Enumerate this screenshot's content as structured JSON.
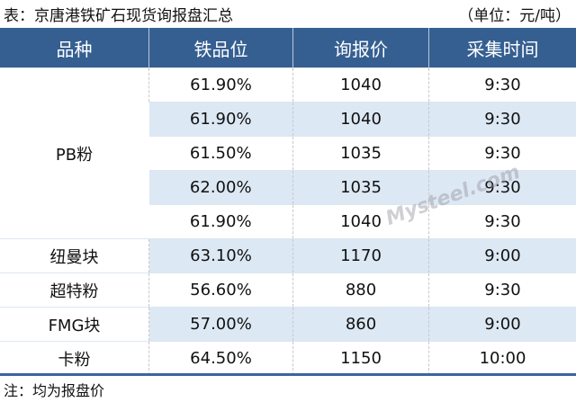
{
  "title": "表：京唐港铁矿石现货询报盘汇总",
  "unit": "（单位：元/吨）",
  "headers": [
    "品种",
    "铁品位",
    "询报价",
    "采集时间"
  ],
  "rows": [
    {
      "variety": "PB粉",
      "grade": "61.90%",
      "price": "1040",
      "time": "9:30"
    },
    {
      "variety": "",
      "grade": "61.90%",
      "price": "1040",
      "time": "9:30"
    },
    {
      "variety": "",
      "grade": "61.50%",
      "price": "1035",
      "time": "9:30"
    },
    {
      "variety": "",
      "grade": "62.00%",
      "price": "1035",
      "time": "9:30"
    },
    {
      "variety": "",
      "grade": "61.90%",
      "price": "1040",
      "time": "9:30"
    },
    {
      "variety": "纽曼块",
      "grade": "63.10%",
      "price": "1170",
      "time": "9:00"
    },
    {
      "variety": "超特粉",
      "grade": "56.60%",
      "price": "880",
      "time": "9:30"
    },
    {
      "variety": "FMG块",
      "grade": "57.00%",
      "price": "860",
      "time": "9:00"
    },
    {
      "variety": "卡粉",
      "grade": "64.50%",
      "price": "1150",
      "time": "10:00"
    }
  ],
  "note": "注：均为报盘价",
  "watermark": "我的钢铁 Mysteel.com",
  "colors": {
    "header": "#355f91",
    "stripe": "#dce8f4"
  }
}
